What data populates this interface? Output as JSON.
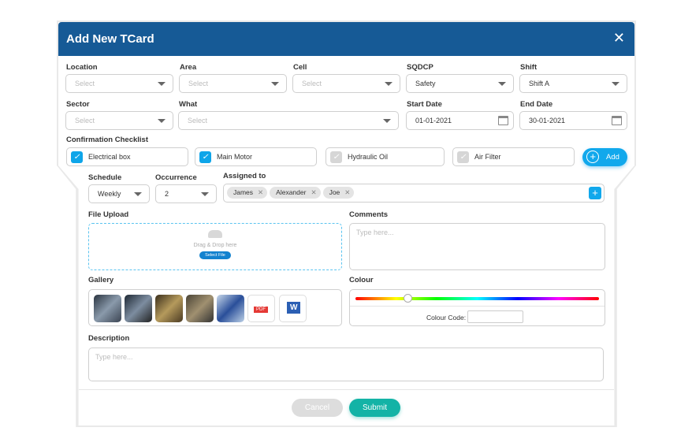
{
  "modal": {
    "title": "Add New TCard",
    "close_icon": "close-icon"
  },
  "fields": {
    "location": {
      "label": "Location",
      "placeholder": "Select"
    },
    "area": {
      "label": "Area",
      "placeholder": "Select"
    },
    "cell": {
      "label": "Cell",
      "placeholder": "Select"
    },
    "sqdcp": {
      "label": "SQDCP",
      "value": "Safety"
    },
    "shift": {
      "label": "Shift",
      "value": "Shift A"
    },
    "sector": {
      "label": "Sector",
      "placeholder": "Select"
    },
    "what": {
      "label": "What",
      "placeholder": "Select"
    },
    "start_date": {
      "label": "Start Date",
      "value": "01-01-2021"
    },
    "end_date": {
      "label": "End Date",
      "value": "30-01-2021"
    }
  },
  "checklist": {
    "label": "Confirmation Checklist",
    "items": [
      {
        "label": "Electrical box",
        "checked": true
      },
      {
        "label": "Main Motor",
        "checked": true
      },
      {
        "label": "Hydraulic Oil",
        "checked": false
      },
      {
        "label": "Air Filter",
        "checked": false
      }
    ],
    "add_label": "Add"
  },
  "schedule": {
    "label": "Schedule",
    "value": "Weekly"
  },
  "occurrence": {
    "label": "Occurrence",
    "value": "2"
  },
  "assigned": {
    "label": "Assigned to",
    "tags": [
      "James",
      "Alexander",
      "Joe"
    ]
  },
  "upload": {
    "label": "File Upload",
    "hint": "Drag & Drop here",
    "button": "Select File"
  },
  "comments": {
    "label": "Comments",
    "placeholder": "Type here..."
  },
  "gallery": {
    "label": "Gallery",
    "pdf": "PDF",
    "word": "W"
  },
  "colour": {
    "label": "Colour",
    "code_label": "Colour Code:",
    "code_value": ""
  },
  "description": {
    "label": "Description",
    "placeholder": "Type here..."
  },
  "footer": {
    "cancel": "Cancel",
    "submit": "Submit"
  },
  "colors": {
    "header": "#165a96",
    "accent": "#11a8ec",
    "submit": "#13b3a6"
  }
}
